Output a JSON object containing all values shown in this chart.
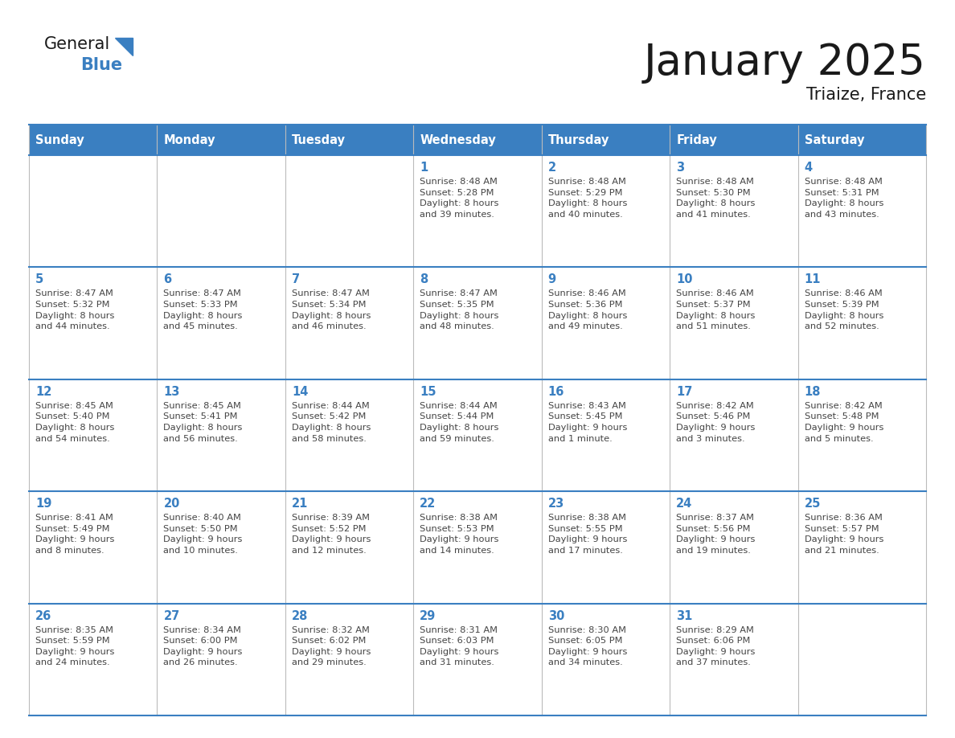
{
  "title": "January 2025",
  "subtitle": "Triaize, France",
  "days_of_week": [
    "Sunday",
    "Monday",
    "Tuesday",
    "Wednesday",
    "Thursday",
    "Friday",
    "Saturday"
  ],
  "header_bg_color": "#3A7FC1",
  "header_text_color": "#FFFFFF",
  "border_color": "#3A7FC1",
  "day_number_color": "#3A7FC1",
  "cell_text_color": "#444444",
  "logo_text_color": "#1a1a1a",
  "logo_blue_color": "#3A7FC1",
  "title_color": "#1a1a1a",
  "calendar_data": [
    [
      {
        "day": null,
        "text": ""
      },
      {
        "day": null,
        "text": ""
      },
      {
        "day": null,
        "text": ""
      },
      {
        "day": 1,
        "text": "Sunrise: 8:48 AM\nSunset: 5:28 PM\nDaylight: 8 hours\nand 39 minutes."
      },
      {
        "day": 2,
        "text": "Sunrise: 8:48 AM\nSunset: 5:29 PM\nDaylight: 8 hours\nand 40 minutes."
      },
      {
        "day": 3,
        "text": "Sunrise: 8:48 AM\nSunset: 5:30 PM\nDaylight: 8 hours\nand 41 minutes."
      },
      {
        "day": 4,
        "text": "Sunrise: 8:48 AM\nSunset: 5:31 PM\nDaylight: 8 hours\nand 43 minutes."
      }
    ],
    [
      {
        "day": 5,
        "text": "Sunrise: 8:47 AM\nSunset: 5:32 PM\nDaylight: 8 hours\nand 44 minutes."
      },
      {
        "day": 6,
        "text": "Sunrise: 8:47 AM\nSunset: 5:33 PM\nDaylight: 8 hours\nand 45 minutes."
      },
      {
        "day": 7,
        "text": "Sunrise: 8:47 AM\nSunset: 5:34 PM\nDaylight: 8 hours\nand 46 minutes."
      },
      {
        "day": 8,
        "text": "Sunrise: 8:47 AM\nSunset: 5:35 PM\nDaylight: 8 hours\nand 48 minutes."
      },
      {
        "day": 9,
        "text": "Sunrise: 8:46 AM\nSunset: 5:36 PM\nDaylight: 8 hours\nand 49 minutes."
      },
      {
        "day": 10,
        "text": "Sunrise: 8:46 AM\nSunset: 5:37 PM\nDaylight: 8 hours\nand 51 minutes."
      },
      {
        "day": 11,
        "text": "Sunrise: 8:46 AM\nSunset: 5:39 PM\nDaylight: 8 hours\nand 52 minutes."
      }
    ],
    [
      {
        "day": 12,
        "text": "Sunrise: 8:45 AM\nSunset: 5:40 PM\nDaylight: 8 hours\nand 54 minutes."
      },
      {
        "day": 13,
        "text": "Sunrise: 8:45 AM\nSunset: 5:41 PM\nDaylight: 8 hours\nand 56 minutes."
      },
      {
        "day": 14,
        "text": "Sunrise: 8:44 AM\nSunset: 5:42 PM\nDaylight: 8 hours\nand 58 minutes."
      },
      {
        "day": 15,
        "text": "Sunrise: 8:44 AM\nSunset: 5:44 PM\nDaylight: 8 hours\nand 59 minutes."
      },
      {
        "day": 16,
        "text": "Sunrise: 8:43 AM\nSunset: 5:45 PM\nDaylight: 9 hours\nand 1 minute."
      },
      {
        "day": 17,
        "text": "Sunrise: 8:42 AM\nSunset: 5:46 PM\nDaylight: 9 hours\nand 3 minutes."
      },
      {
        "day": 18,
        "text": "Sunrise: 8:42 AM\nSunset: 5:48 PM\nDaylight: 9 hours\nand 5 minutes."
      }
    ],
    [
      {
        "day": 19,
        "text": "Sunrise: 8:41 AM\nSunset: 5:49 PM\nDaylight: 9 hours\nand 8 minutes."
      },
      {
        "day": 20,
        "text": "Sunrise: 8:40 AM\nSunset: 5:50 PM\nDaylight: 9 hours\nand 10 minutes."
      },
      {
        "day": 21,
        "text": "Sunrise: 8:39 AM\nSunset: 5:52 PM\nDaylight: 9 hours\nand 12 minutes."
      },
      {
        "day": 22,
        "text": "Sunrise: 8:38 AM\nSunset: 5:53 PM\nDaylight: 9 hours\nand 14 minutes."
      },
      {
        "day": 23,
        "text": "Sunrise: 8:38 AM\nSunset: 5:55 PM\nDaylight: 9 hours\nand 17 minutes."
      },
      {
        "day": 24,
        "text": "Sunrise: 8:37 AM\nSunset: 5:56 PM\nDaylight: 9 hours\nand 19 minutes."
      },
      {
        "day": 25,
        "text": "Sunrise: 8:36 AM\nSunset: 5:57 PM\nDaylight: 9 hours\nand 21 minutes."
      }
    ],
    [
      {
        "day": 26,
        "text": "Sunrise: 8:35 AM\nSunset: 5:59 PM\nDaylight: 9 hours\nand 24 minutes."
      },
      {
        "day": 27,
        "text": "Sunrise: 8:34 AM\nSunset: 6:00 PM\nDaylight: 9 hours\nand 26 minutes."
      },
      {
        "day": 28,
        "text": "Sunrise: 8:32 AM\nSunset: 6:02 PM\nDaylight: 9 hours\nand 29 minutes."
      },
      {
        "day": 29,
        "text": "Sunrise: 8:31 AM\nSunset: 6:03 PM\nDaylight: 9 hours\nand 31 minutes."
      },
      {
        "day": 30,
        "text": "Sunrise: 8:30 AM\nSunset: 6:05 PM\nDaylight: 9 hours\nand 34 minutes."
      },
      {
        "day": 31,
        "text": "Sunrise: 8:29 AM\nSunset: 6:06 PM\nDaylight: 9 hours\nand 37 minutes."
      },
      {
        "day": null,
        "text": ""
      }
    ]
  ]
}
